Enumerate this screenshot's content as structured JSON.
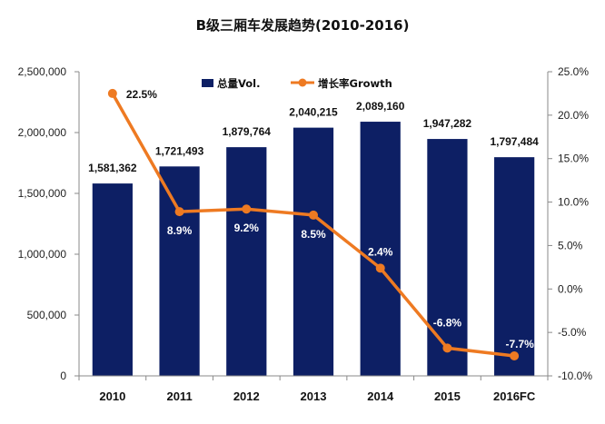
{
  "chart_data": {
    "type": "bar",
    "title": "B级三厢车发展趋势(2010-2016)",
    "categories": [
      "2010",
      "2011",
      "2012",
      "2013",
      "2014",
      "2015",
      "2016FC"
    ],
    "series": [
      {
        "name": "总量Vol.",
        "type": "bar",
        "axis": "left",
        "values": [
          1581362,
          1721493,
          1879764,
          2040215,
          2089160,
          1947282,
          1797484
        ],
        "labels": [
          "1,581,362",
          "1,721,493",
          "1,879,764",
          "2,040,215",
          "2,089,160",
          "1,947,282",
          "1,797,484"
        ]
      },
      {
        "name": "增长率Growth",
        "type": "line",
        "axis": "right",
        "values": [
          22.5,
          8.9,
          9.2,
          8.5,
          2.4,
          -6.8,
          -7.7
        ],
        "labels": [
          "22.5%",
          "8.9%",
          "9.2%",
          "8.5%",
          "2.4%",
          "-6.8%",
          "-7.7%"
        ]
      }
    ],
    "y_left": {
      "range": [
        0,
        2500000
      ],
      "ticks": [
        "0",
        "500,000",
        "1,000,000",
        "1,500,000",
        "2,000,000",
        "2,500,000"
      ]
    },
    "y_right": {
      "range": [
        -10,
        25
      ],
      "ticks": [
        "-10.0%",
        "-5.0%",
        "0.0%",
        "5.0%",
        "10.0%",
        "15.0%",
        "20.0%",
        "25.0%"
      ]
    },
    "grid": false,
    "legend_position": "top-center",
    "colors": {
      "bar": "#0d1f64",
      "line": "#ee7a22",
      "frame": "#8a8a8a"
    }
  }
}
